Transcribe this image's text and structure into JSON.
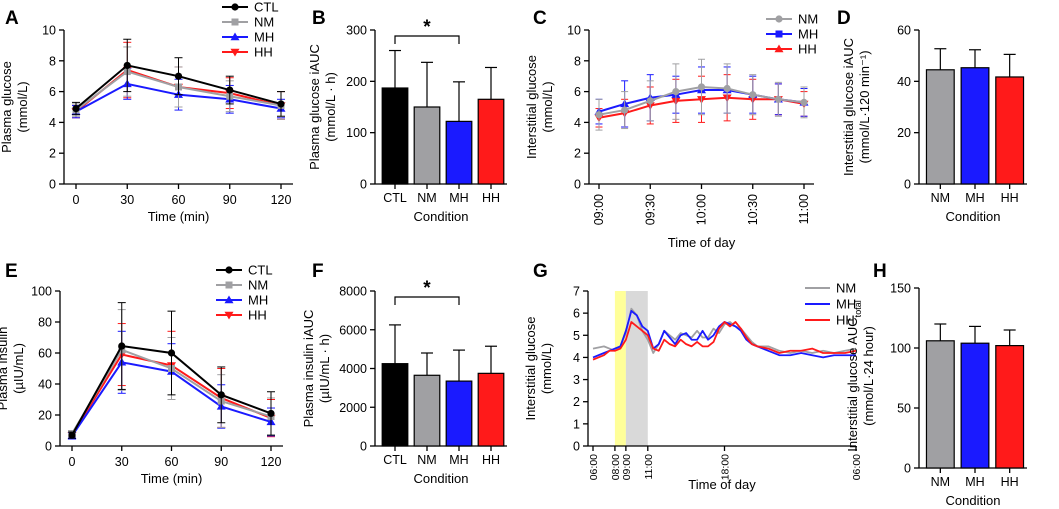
{
  "colors": {
    "CTL": "#000000",
    "NM": "#a0a0a3",
    "MH": "#1a1aff",
    "HH": "#ff1a1a",
    "highlight_yellow": "#ffff99",
    "highlight_grey": "#d9d9d9"
  },
  "chart_data": [
    {
      "panel": "A",
      "type": "line",
      "xlabel": "Time (min)",
      "ylabel": "Plasma glucose\n(mmol/L)",
      "xlim": [
        0,
        120
      ],
      "ylim": [
        0,
        10
      ],
      "xticks": [
        0,
        30,
        60,
        90,
        120
      ],
      "yticks": [
        0,
        2,
        4,
        6,
        8,
        10
      ],
      "legend": [
        "CTL",
        "NM",
        "MH",
        "HH"
      ],
      "series": [
        {
          "name": "CTL",
          "x": [
            0,
            30,
            60,
            90,
            120
          ],
          "values": [
            4.9,
            7.7,
            7.0,
            6.1,
            5.2
          ],
          "err": [
            0.4,
            1.7,
            1.2,
            0.9,
            0.8
          ]
        },
        {
          "name": "NM",
          "x": [
            0,
            30,
            60,
            90,
            120
          ],
          "values": [
            4.8,
            7.3,
            6.3,
            5.7,
            5.1
          ],
          "err": [
            0.4,
            1.6,
            1.3,
            1.0,
            0.9
          ]
        },
        {
          "name": "MH",
          "x": [
            0,
            30,
            60,
            90,
            120
          ],
          "values": [
            4.7,
            6.5,
            5.8,
            5.5,
            4.9
          ],
          "err": [
            0.4,
            1.0,
            1.0,
            0.9,
            0.6
          ]
        },
        {
          "name": "HH",
          "x": [
            0,
            30,
            60,
            90,
            120
          ],
          "values": [
            4.7,
            7.4,
            6.3,
            5.9,
            5.1
          ],
          "err": [
            0.4,
            1.8,
            1.3,
            1.0,
            0.9
          ]
        }
      ]
    },
    {
      "panel": "B",
      "type": "bar",
      "xlabel": "Condition",
      "ylabel": "Plasma glucose iAUC\n(mmol/L · h)",
      "ylim": [
        0,
        300
      ],
      "yticks": [
        0,
        100,
        200,
        300
      ],
      "categories": [
        "CTL",
        "NM",
        "MH",
        "HH"
      ],
      "values": [
        187,
        150,
        122,
        165
      ],
      "err": [
        73,
        87,
        77,
        62
      ],
      "significance": {
        "from": "CTL",
        "to": "MH",
        "label": "*"
      }
    },
    {
      "panel": "C",
      "type": "line",
      "xlabel": "Time of day",
      "ylabel": "Interstitial glucose\n(mmol/L)",
      "ylim": [
        0,
        10
      ],
      "yticks": [
        0,
        2,
        4,
        6,
        8,
        10
      ],
      "xticks": [
        "09:00",
        "09:30",
        "10:00",
        "10:30",
        "11:00"
      ],
      "xlim_minutes": [
        0,
        120
      ],
      "legend": [
        "NM",
        "MH",
        "HH"
      ],
      "series": [
        {
          "name": "NM",
          "x": [
            0,
            15,
            30,
            45,
            60,
            75,
            90,
            105,
            120
          ],
          "values": [
            4.5,
            4.8,
            5.4,
            6.0,
            6.3,
            6.2,
            5.8,
            5.5,
            5.3
          ],
          "err": [
            1.0,
            1.2,
            1.3,
            1.8,
            1.8,
            1.6,
            1.3,
            1.1,
            1.0
          ]
        },
        {
          "name": "MH",
          "x": [
            0,
            15,
            30,
            45,
            60,
            75,
            90,
            105,
            120
          ],
          "values": [
            4.7,
            5.2,
            5.6,
            5.8,
            6.1,
            6.1,
            5.8,
            5.5,
            5.3
          ],
          "err": [
            0.8,
            1.5,
            1.5,
            1.2,
            1.5,
            1.5,
            1.2,
            1.0,
            0.9
          ]
        },
        {
          "name": "HH",
          "x": [
            0,
            15,
            30,
            45,
            60,
            75,
            90,
            105,
            120
          ],
          "values": [
            4.3,
            4.6,
            5.1,
            5.4,
            5.5,
            5.6,
            5.5,
            5.5,
            5.2
          ],
          "err": [
            0.6,
            0.9,
            1.2,
            1.4,
            1.5,
            1.5,
            1.3,
            1.0,
            0.8
          ]
        }
      ]
    },
    {
      "panel": "D",
      "type": "bar",
      "xlabel": "Condition",
      "ylabel": "Interstitial glucose iAUC\n(mmol/L·120 min⁻¹)",
      "ylim": [
        0,
        60
      ],
      "yticks": [
        0,
        20,
        40,
        60
      ],
      "categories": [
        "NM",
        "MH",
        "HH"
      ],
      "values": [
        44.5,
        45.3,
        41.7
      ],
      "err": [
        8.2,
        7.0,
        8.8
      ]
    },
    {
      "panel": "E",
      "type": "line",
      "xlabel": "Time (min)",
      "ylabel": "Plasma insulin\n(µIU/mL)",
      "xlim": [
        0,
        120
      ],
      "ylim": [
        0,
        100
      ],
      "xticks": [
        0,
        30,
        60,
        90,
        120
      ],
      "yticks": [
        0,
        20,
        40,
        60,
        80,
        100
      ],
      "legend": [
        "CTL",
        "NM",
        "MH",
        "HH"
      ],
      "series": [
        {
          "name": "CTL",
          "x": [
            0,
            30,
            60,
            90,
            120
          ],
          "values": [
            7,
            64.5,
            60,
            33,
            21
          ],
          "err": [
            2,
            28,
            27,
            18,
            14
          ]
        },
        {
          "name": "NM",
          "x": [
            0,
            30,
            60,
            90,
            120
          ],
          "values": [
            8,
            62,
            50,
            29,
            19
          ],
          "err": [
            2,
            26,
            20,
            17,
            12
          ]
        },
        {
          "name": "MH",
          "x": [
            0,
            30,
            60,
            90,
            120
          ],
          "values": [
            6.5,
            54,
            48,
            25.5,
            15.5
          ],
          "err": [
            2,
            20,
            18,
            14,
            9
          ]
        },
        {
          "name": "HH",
          "x": [
            0,
            30,
            60,
            90,
            120
          ],
          "values": [
            7,
            59,
            52,
            31,
            18
          ],
          "err": [
            2,
            20,
            22,
            19,
            12
          ]
        }
      ]
    },
    {
      "panel": "F",
      "type": "bar",
      "xlabel": "Condition",
      "ylabel": "Plasma insulin iAUC\n(µIU/mL · h)",
      "ylim": [
        0,
        8000
      ],
      "yticks": [
        0,
        2000,
        4000,
        6000,
        8000
      ],
      "categories": [
        "CTL",
        "NM",
        "MH",
        "HH"
      ],
      "values": [
        4250,
        3650,
        3350,
        3750
      ],
      "err": [
        2000,
        1150,
        1600,
        1400
      ],
      "significance": {
        "from": "CTL",
        "to": "MH",
        "label": "*"
      }
    },
    {
      "panel": "G",
      "type": "line",
      "xlabel": "Time of day",
      "ylabel": "Interstitial glucose\n(mmol/L)",
      "ylim": [
        0,
        7
      ],
      "yticks": [
        0,
        1,
        2,
        3,
        4,
        5,
        6,
        7
      ],
      "xticks": [
        "06:00",
        "08:00",
        "09:00",
        "11:00",
        "18:00",
        "06:00"
      ],
      "xtick_hours": [
        0,
        2,
        3,
        5,
        12,
        24
      ],
      "shaded_windows_hours": [
        {
          "from": 2,
          "to": 3,
          "color": "highlight_yellow"
        },
        {
          "from": 3,
          "to": 5,
          "color": "highlight_grey"
        }
      ],
      "legend": [
        "NM",
        "MH",
        "HH"
      ],
      "series": [
        {
          "name": "NM",
          "hours": [
            0,
            1,
            1.5,
            2,
            2.5,
            3,
            3.5,
            4,
            4.5,
            5,
            5.5,
            6,
            6.5,
            7,
            7.5,
            8,
            8.5,
            9,
            9.5,
            10,
            10.5,
            11,
            11.5,
            12,
            12.5,
            13,
            13.5,
            14,
            14.5,
            15,
            16,
            17,
            18,
            19,
            20,
            21,
            22,
            23,
            24
          ],
          "values": [
            4.4,
            4.5,
            4.4,
            4.3,
            4.5,
            5.1,
            6.2,
            5.9,
            5.2,
            4.8,
            4.2,
            4.6,
            5.2,
            5.0,
            4.8,
            5.1,
            5.0,
            4.9,
            5.2,
            4.9,
            4.9,
            5.3,
            5.1,
            5.5,
            5.6,
            5.4,
            5.3,
            5.0,
            4.7,
            4.5,
            4.5,
            4.3,
            4.2,
            4.3,
            4.2,
            4.3,
            4.2,
            4.3,
            4.4
          ]
        },
        {
          "name": "MH",
          "hours": [
            0,
            1,
            1.5,
            2,
            2.5,
            3,
            3.5,
            4,
            4.5,
            5,
            5.5,
            6,
            6.5,
            7,
            7.5,
            8,
            8.5,
            9,
            9.5,
            10,
            10.5,
            11,
            11.5,
            12,
            12.5,
            13,
            13.5,
            14,
            14.5,
            15,
            16,
            17,
            18,
            19,
            20,
            21,
            22,
            23,
            24
          ],
          "values": [
            4.0,
            4.2,
            4.3,
            4.4,
            4.5,
            5.2,
            6.1,
            5.9,
            5.4,
            5.2,
            4.4,
            4.6,
            5.2,
            4.9,
            4.6,
            5.0,
            5.1,
            4.8,
            4.8,
            5.2,
            4.8,
            5.0,
            5.4,
            5.6,
            5.5,
            5.4,
            5.2,
            4.8,
            4.6,
            4.5,
            4.3,
            4.1,
            4.1,
            4.2,
            4.1,
            4.0,
            4.1,
            4.1,
            4.1
          ]
        },
        {
          "name": "HH",
          "hours": [
            0,
            1,
            1.5,
            2,
            2.5,
            3,
            3.5,
            4,
            4.5,
            5,
            5.5,
            6,
            6.5,
            7,
            7.5,
            8,
            8.5,
            9,
            9.5,
            10,
            10.5,
            11,
            11.5,
            12,
            12.5,
            13,
            13.5,
            14,
            14.5,
            15,
            16,
            17,
            18,
            19,
            20,
            21,
            22,
            23,
            24
          ],
          "values": [
            3.9,
            4.1,
            4.3,
            4.3,
            4.4,
            4.8,
            5.6,
            5.4,
            5.2,
            5.0,
            4.4,
            4.3,
            4.8,
            4.6,
            4.5,
            4.8,
            4.6,
            4.5,
            4.7,
            4.5,
            4.5,
            4.7,
            5.3,
            5.6,
            5.4,
            5.6,
            5.3,
            4.9,
            4.6,
            4.5,
            4.4,
            4.2,
            4.3,
            4.3,
            4.4,
            4.2,
            4.2,
            4.2,
            4.3
          ]
        }
      ]
    },
    {
      "panel": "H",
      "type": "bar",
      "xlabel": "Condition",
      "ylabel": "Interstitial glucose AUCₜₒₜₐₗ\n(mmol/L·24 hour)",
      "ylabel_main": "Interstitial glucose AUC",
      "ylabel_sub": "total",
      "ylabel_line2": "(mmol/L·24 hour)",
      "ylim": [
        0,
        150
      ],
      "yticks": [
        0,
        50,
        100,
        150
      ],
      "categories": [
        "NM",
        "MH",
        "HH"
      ],
      "values": [
        106,
        104,
        102
      ],
      "err": [
        14,
        14,
        13
      ]
    }
  ]
}
